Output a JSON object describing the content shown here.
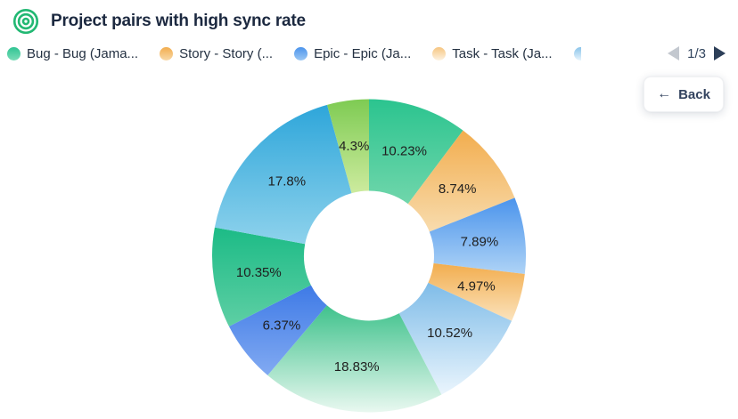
{
  "toolbar": {
    "back_label": "Back",
    "back_icon": "arrow-left"
  },
  "colors": {
    "icon_green": "#22b873",
    "title_text": "#1c2940",
    "legend_text": "#243142",
    "pagination_text": "#32455e",
    "arrow_disabled": "#c3c8cf",
    "arrow_enabled": "#2d3f58",
    "back_text": "#33435f",
    "percent_label_text": "#1f1f1f"
  },
  "chart_data": {
    "type": "pie",
    "donut": true,
    "title": "Project pairs with high sync rate",
    "direction": "clockwise",
    "start_angle_deg": 0,
    "labels_inside": true,
    "slices": [
      {
        "label": "10.23%",
        "value": 10.23,
        "color_from": "#2bc48f",
        "color_to": "#70d6ab"
      },
      {
        "label": "8.74%",
        "value": 8.74,
        "color_from": "#f2ad4e",
        "color_to": "#f8dcae"
      },
      {
        "label": "7.89%",
        "value": 7.89,
        "color_from": "#4b94ec",
        "color_to": "#aed3f6"
      },
      {
        "label": "4.97%",
        "value": 4.97,
        "color_from": "#f2ad4e",
        "color_to": "#fbe3bd"
      },
      {
        "label": "10.52%",
        "value": 10.52,
        "color_from": "#7fbce8",
        "color_to": "#eaf5fd"
      },
      {
        "label": "18.83%",
        "value": 18.83,
        "color_from": "#3fc28c",
        "color_to": "#e9f8f0"
      },
      {
        "label": "6.37%",
        "value": 6.37,
        "color_from": "#3e7ae6",
        "color_to": "#82aaf2"
      },
      {
        "label": "10.35%",
        "value": 10.35,
        "color_from": "#1cbb86",
        "color_to": "#5ecfa4"
      },
      {
        "label": "17.8%",
        "value": 17.8,
        "color_from": "#2ea6da",
        "color_to": "#8ed2ec"
      },
      {
        "label": "4.3%",
        "value": 4.3,
        "color_from": "#7ecb53",
        "color_to": "#cdeb9e"
      }
    ],
    "legend": {
      "position": "top",
      "page": "1/3",
      "visible_items": [
        {
          "label": "Bug - Bug (Jama...",
          "dot_from": "#2fc493",
          "dot_to": "#7adcb8"
        },
        {
          "label": "Story - Story (...",
          "dot_from": "#f2ad4e",
          "dot_to": "#f8d9a8"
        },
        {
          "label": "Epic - Epic (Ja...",
          "dot_from": "#4b94ec",
          "dot_to": "#9cc8f4"
        },
        {
          "label": "Task - Task (Ja...",
          "dot_from": "#f6c580",
          "dot_to": "#fdf3e2"
        }
      ],
      "partial_next_item_dot": {
        "dot_from": "#8ac4ea",
        "dot_to": "#e9f5fd"
      }
    }
  }
}
